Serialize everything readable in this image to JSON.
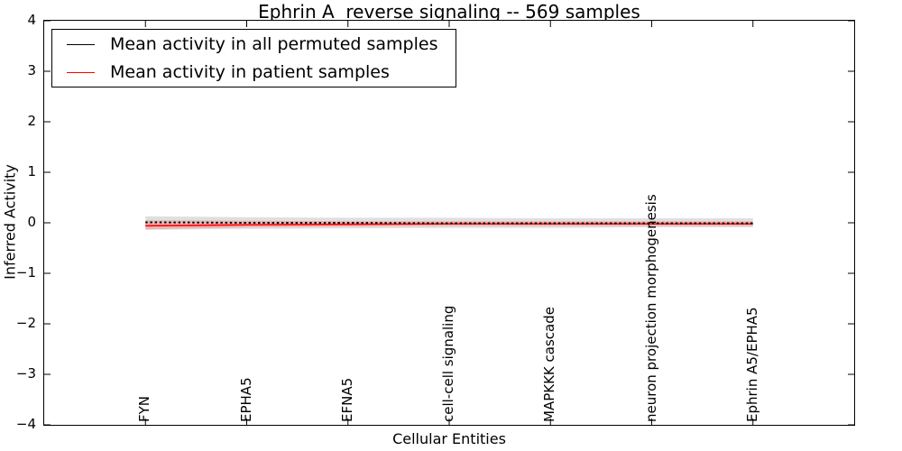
{
  "figure": {
    "title": "Ephrin A  reverse signaling -- 569 samples",
    "xlabel": "Cellular Entities",
    "ylabel": "Inferred Activity"
  },
  "legend": {
    "entries": [
      {
        "label": "Mean activity in all permuted samples",
        "color": "#000000"
      },
      {
        "label": "Mean activity in patient samples",
        "color": "#ff0000"
      }
    ]
  },
  "chart_data": {
    "type": "line",
    "title": "Ephrin A  reverse signaling -- 569 samples",
    "xlabel": "Cellular Entities",
    "ylabel": "Inferred Activity",
    "categories": [
      "FYN",
      "EPHA5",
      "EFNA5",
      "cell-cell signaling",
      "MAPKKK cascade",
      "neuron projection morphogenesis",
      "Ephrin A5/EPHA5"
    ],
    "xlim": [
      -1,
      7
    ],
    "ylim": [
      -4,
      4
    ],
    "yticks": [
      4,
      3,
      2,
      1,
      0,
      -1,
      -2,
      -3,
      -4
    ],
    "ytick_labels": [
      "4",
      "3",
      "2",
      "1",
      "0",
      "−1",
      "−2",
      "−3",
      "−4"
    ],
    "grid": false,
    "legend_position": "upper left",
    "series": [
      {
        "name": "Mean activity in all permuted samples",
        "color": "#000000",
        "style": "dotted",
        "values": [
          0.01,
          0.0,
          0.0,
          -0.01,
          -0.01,
          -0.01,
          -0.01
        ],
        "band": {
          "color": "#969696",
          "opacity": 0.3,
          "upper": [
            0.13,
            0.11,
            0.1,
            0.1,
            0.09,
            0.09,
            0.09
          ],
          "lower": [
            -0.14,
            -0.12,
            -0.11,
            -0.1,
            -0.1,
            -0.09,
            -0.09
          ]
        }
      },
      {
        "name": "Mean activity in patient samples",
        "color": "#ff0000",
        "style": "solid",
        "values": [
          -0.06,
          -0.04,
          -0.03,
          -0.02,
          -0.02,
          -0.02,
          -0.02
        ],
        "band": {
          "color": "#ff4646",
          "opacity": 0.28,
          "upper": [
            0.05,
            0.04,
            0.03,
            0.03,
            0.03,
            0.03,
            0.03
          ],
          "lower": [
            -0.13,
            -0.09,
            -0.07,
            -0.06,
            -0.06,
            -0.06,
            -0.06
          ]
        }
      }
    ]
  }
}
